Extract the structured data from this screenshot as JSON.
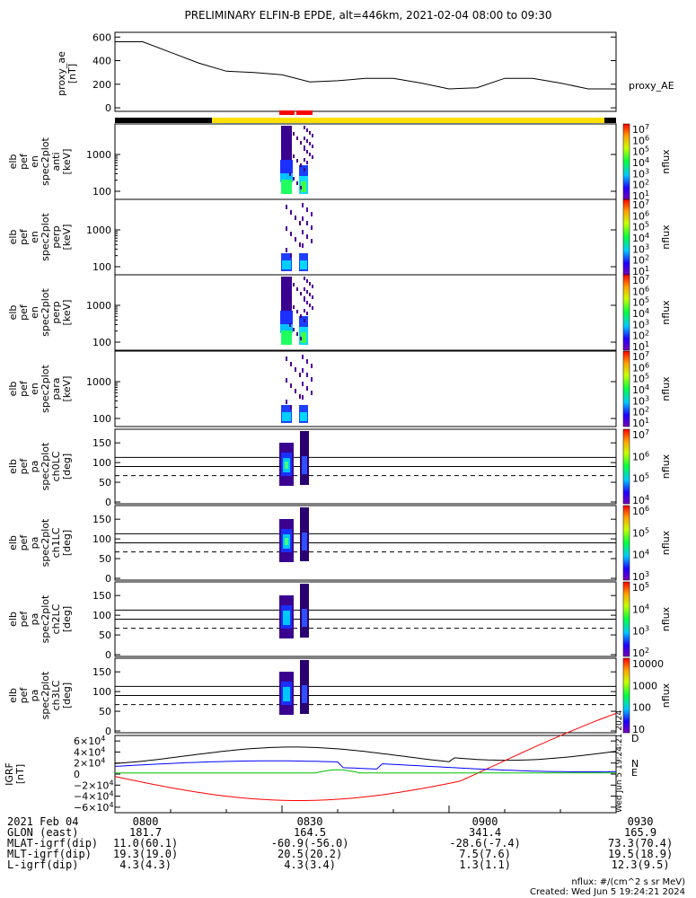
{
  "title": "PRELIMINARY ELFIN-B EPDE, alt=446km, 2021-02-04 08:00 to 09:30",
  "proxy_ae": {
    "ylabel": [
      "proxy_ae",
      "[nT]"
    ],
    "legend": "proxy_AE",
    "yticks": [
      "600",
      "400",
      "200",
      "0"
    ],
    "ylim": [
      -30,
      640
    ]
  },
  "spec_panels": [
    {
      "ylabel": [
        "elb",
        "pef",
        "en",
        "spec2plot",
        "anti",
        "[keV]"
      ],
      "yticks": [
        "1000",
        "100"
      ],
      "cbar_ticks": [
        "10^7",
        "10^6",
        "10^5",
        "10^4",
        "10^3",
        "10^2",
        "10^1"
      ],
      "cbar_label": "nflux"
    },
    {
      "ylabel": [
        "elb",
        "pef",
        "en",
        "spec2plot",
        "perp",
        "[keV]"
      ],
      "yticks": [
        "1000",
        "100"
      ],
      "cbar_ticks": [
        "10^7",
        "10^6",
        "10^5",
        "10^4",
        "10^3",
        "10^2",
        "10^1"
      ],
      "cbar_label": "nflux"
    },
    {
      "ylabel": [
        "elb",
        "pef",
        "en",
        "spec2plot",
        "perp",
        "[keV]"
      ],
      "yticks": [
        "1000",
        "100"
      ],
      "cbar_ticks": [
        "10^7",
        "10^6",
        "10^5",
        "10^4",
        "10^3",
        "10^2",
        "10^1"
      ],
      "cbar_label": "nflux"
    },
    {
      "ylabel": [
        "elb",
        "pef",
        "en",
        "spec2plot",
        "para",
        "[keV]"
      ],
      "yticks": [
        "1000",
        "100"
      ],
      "cbar_ticks": [
        "10^7",
        "10^6",
        "10^5",
        "10^4",
        "10^3",
        "10^2",
        "10^1"
      ],
      "cbar_label": "nflux"
    }
  ],
  "pa_panels": [
    {
      "ylabel": [
        "elb",
        "pef",
        "pa",
        "spec2plot",
        "ch0LC",
        "[deg]"
      ],
      "yticks": [
        "150",
        "100",
        "50",
        "0"
      ],
      "cbar_ticks": [
        "10^7",
        "10^6",
        "10^5",
        "10^4"
      ],
      "cbar_label": "nflux"
    },
    {
      "ylabel": [
        "elb",
        "pef",
        "pa",
        "spec2plot",
        "ch1LC",
        "[deg]"
      ],
      "yticks": [
        "150",
        "100",
        "50",
        "0"
      ],
      "cbar_ticks": [
        "10^6",
        "10^5",
        "10^4",
        "10^3"
      ],
      "cbar_label": "nflux"
    },
    {
      "ylabel": [
        "elb",
        "pef",
        "pa",
        "spec2plot",
        "ch2LC",
        "[deg]"
      ],
      "yticks": [
        "150",
        "100",
        "50",
        "0"
      ],
      "cbar_ticks": [
        "10^5",
        "10^4",
        "10^3",
        "10^2"
      ],
      "cbar_label": "nflux"
    },
    {
      "ylabel": [
        "elb",
        "pef",
        "pa",
        "spec2plot",
        "ch3LC",
        "[deg]"
      ],
      "yticks": [
        "150",
        "100",
        "50",
        "0"
      ],
      "cbar_ticks": [
        "10000",
        "1000",
        "100",
        "10"
      ],
      "cbar_label": "nflux"
    }
  ],
  "igrf": {
    "ylabel": [
      "IGRF",
      "[nT]"
    ],
    "yticks": [
      "6×10^4",
      "4×10^4",
      "2×10^4",
      "0",
      "−2×10^4",
      "−4×10^4",
      "−6×10^4"
    ],
    "legend": [
      "D",
      "N",
      "E"
    ],
    "legend_colors": [
      "#ff0000",
      "#0000ff",
      "#00c000"
    ]
  },
  "chart_data": {
    "type": "line",
    "x": [
      "08:00",
      "08:05",
      "08:10",
      "08:15",
      "08:20",
      "08:25",
      "08:30",
      "08:35",
      "08:40",
      "08:45",
      "08:50",
      "08:55",
      "09:00",
      "09:05",
      "09:10",
      "09:15",
      "09:20",
      "09:25",
      "09:30"
    ],
    "xlim": [
      "08:00",
      "09:30"
    ],
    "series": [
      {
        "name": "proxy_AE",
        "values": [
          560,
          560,
          470,
          380,
          310,
          300,
          280,
          220,
          230,
          250,
          250,
          210,
          160,
          170,
          250,
          250,
          210,
          160,
          160
        ],
        "color": "#000000"
      }
    ],
    "ylim": [
      -30,
      640
    ],
    "time_axis_rows": [
      {
        "label": "2021 Feb 04",
        "values": [
          "0800",
          "0830",
          "0900",
          "0930"
        ]
      },
      {
        "label": "GLON (east)",
        "values": [
          "181.7",
          "164.5",
          "341.4",
          "165.9"
        ]
      },
      {
        "label": "MLAT-igrf(dip)",
        "values": [
          "11.0(60.1)",
          "-60.9(-56.0)",
          "-28.6(-7.4)",
          "73.3(70.4)"
        ]
      },
      {
        "label": "MLT-igrf(dip)",
        "values": [
          "19.3(19.0)",
          "20.5(20.2)",
          "7.5(7.6)",
          "19.5(18.9)"
        ]
      },
      {
        "label": "L-igrf(dip)",
        "values": [
          "4.3(4.3)",
          "4.3(3.4)",
          "1.3(1.1)",
          "12.3(9.5)"
        ]
      }
    ]
  },
  "footnote": {
    "units": "nflux: #/(cm^2 s sr MeV)",
    "created": "Created: Wed Jun  5 19:24:21 2024",
    "vertical_stamp": "Wed Jun  5 19:24:21 2024"
  }
}
